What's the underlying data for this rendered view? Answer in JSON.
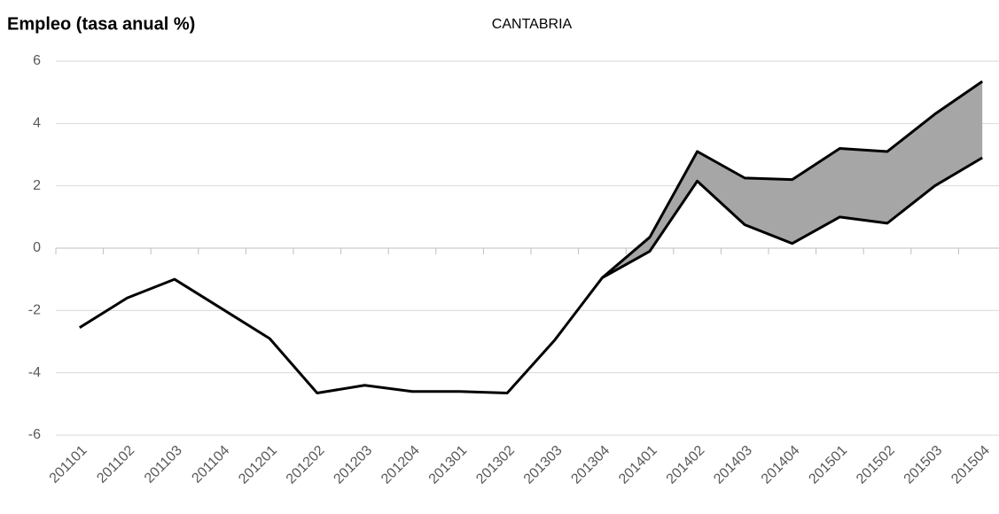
{
  "chart_data": {
    "type": "line",
    "title": "Empleo (tasa anual %)",
    "subtitle": "CANTABRIA",
    "categories": [
      "201101",
      "201102",
      "201103",
      "201104",
      "201201",
      "201202",
      "201203",
      "201204",
      "201301",
      "201302",
      "201303",
      "201304",
      "201401",
      "201402",
      "201403",
      "201404",
      "201501",
      "201502",
      "201503",
      "201504"
    ],
    "series": [
      {
        "color": "#000000",
        "values": [
          -2.55,
          -1.6,
          -1.0,
          -1.95,
          -2.9,
          -4.65,
          -4.4,
          -4.6,
          -4.6,
          -4.65,
          -2.95,
          -0.95,
          -0.1,
          2.15,
          0.75,
          0.15,
          1.0,
          0.8,
          2.0,
          2.9
        ]
      },
      {
        "color": "#000000",
        "values": [
          null,
          null,
          null,
          null,
          null,
          null,
          null,
          null,
          null,
          null,
          null,
          -0.95,
          0.35,
          3.1,
          2.25,
          2.2,
          3.2,
          3.1,
          4.3,
          5.35
        ]
      }
    ],
    "band_color": "#a6a6a6",
    "ylim": [
      -6,
      6
    ],
    "yticks": [
      -6,
      -4,
      -2,
      0,
      2,
      4,
      6
    ],
    "grid": true
  }
}
